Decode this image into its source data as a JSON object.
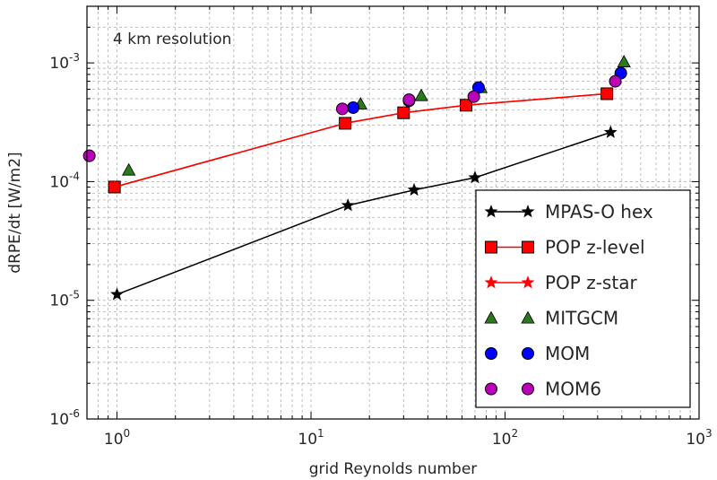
{
  "chart_data": {
    "type": "line",
    "annotation": "4 km resolution",
    "xlabel": "grid Reynolds number",
    "ylabel": "dRPE/dt [W/m2]",
    "xscale": "log",
    "yscale": "log",
    "xlim": [
      0.7,
      1000
    ],
    "ylim": [
      1e-06,
      0.003
    ],
    "x_ticks": [
      {
        "value": 1,
        "base": "10",
        "exp": "0"
      },
      {
        "value": 10,
        "base": "10",
        "exp": "1"
      },
      {
        "value": 100,
        "base": "10",
        "exp": "2"
      },
      {
        "value": 1000,
        "base": "10",
        "exp": "3"
      }
    ],
    "y_ticks": [
      {
        "value": 1e-06,
        "base": "10",
        "exp": "-6"
      },
      {
        "value": 1e-05,
        "base": "10",
        "exp": "-5"
      },
      {
        "value": 0.0001,
        "base": "10",
        "exp": "-4"
      },
      {
        "value": 0.001,
        "base": "10",
        "exp": "-3"
      }
    ],
    "grid": true,
    "legend_position": "lower-right",
    "series": [
      {
        "name": "MPAS-O hex",
        "color": "#000000",
        "marker": "star",
        "line": true,
        "x": [
          1.0,
          15.5,
          34,
          70,
          350
        ],
        "y": [
          1.12e-05,
          6.3e-05,
          8.5e-05,
          0.000108,
          0.00026
        ]
      },
      {
        "name": "POP z-level",
        "color": "#ff0000",
        "marker": "square",
        "line": true,
        "x": [
          0.97,
          15,
          30,
          63,
          335
        ],
        "y": [
          9e-05,
          0.00031,
          0.00038,
          0.00044,
          0.00055
        ]
      },
      {
        "name": "POP z-star",
        "color": "#ff0000",
        "marker": "star",
        "line": true,
        "x": [
          0.97,
          15,
          30,
          63,
          335
        ],
        "y": [
          9e-05,
          0.00031,
          0.00038,
          0.00044,
          0.00055
        ]
      },
      {
        "name": "MITGCM",
        "color": "#2a7a1c",
        "marker": "triangle",
        "line": false,
        "x": [
          1.15,
          18,
          37,
          75,
          410
        ],
        "y": [
          0.000125,
          0.00045,
          0.00053,
          0.00062,
          0.00102
        ]
      },
      {
        "name": "MOM",
        "color": "#0000ff",
        "marker": "circle",
        "line": false,
        "x": [
          16.5,
          32,
          73,
          395
        ],
        "y": [
          0.00042,
          0.00048,
          0.00062,
          0.00082
        ]
      },
      {
        "name": "MOM6",
        "color": "#bb00bb",
        "marker": "circle",
        "line": false,
        "x": [
          0.72,
          14.5,
          32,
          69,
          370
        ],
        "y": [
          0.000165,
          0.00041,
          0.00049,
          0.00052,
          0.0007
        ]
      }
    ]
  }
}
